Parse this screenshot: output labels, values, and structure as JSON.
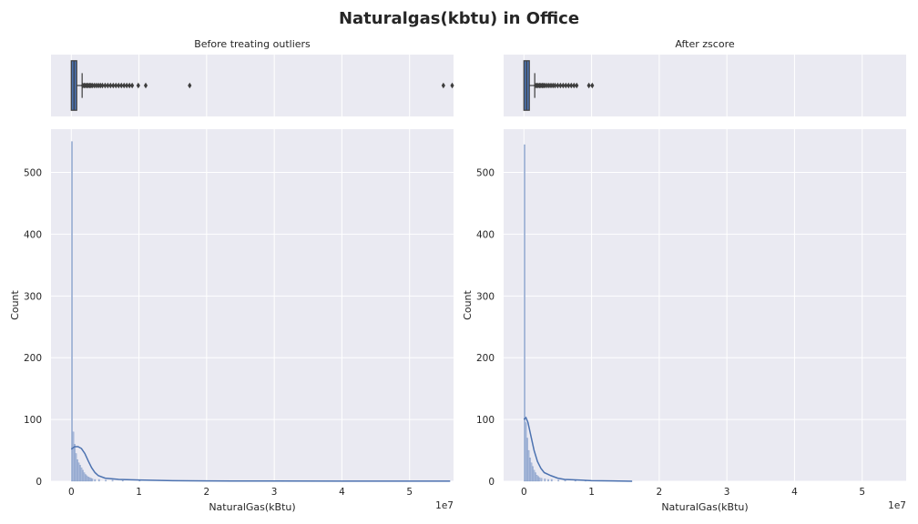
{
  "figure": {
    "title": "Naturalgas(kbtu) in Office"
  },
  "colors": {
    "axes_bg": "#EAEAF2",
    "grid": "#FFFFFF",
    "box_face": "#4C72B0",
    "box_edge": "#3D3D3D",
    "hist_bar": "#A7B8D9",
    "kde_line": "#4C72B0",
    "flier": "#3D3D3D"
  },
  "chart_data": [
    {
      "type": "histogram",
      "panel": "left",
      "title": "Before treating outliers",
      "xlabel": "NaturalGas(kBtu)",
      "ylabel": "Count",
      "x_offset_label": "1e7",
      "xlim": [
        -0.3,
        5.65
      ],
      "ylim": [
        0,
        570
      ],
      "xticks": [
        0,
        1,
        2,
        3,
        4,
        5
      ],
      "yticks": [
        0,
        100,
        200,
        300,
        400,
        500
      ],
      "x_scale": "1e7",
      "grid": true,
      "bins": [
        {
          "x": 0.0,
          "count": 550
        },
        {
          "x": 0.02,
          "count": 80
        },
        {
          "x": 0.04,
          "count": 60
        },
        {
          "x": 0.06,
          "count": 45
        },
        {
          "x": 0.08,
          "count": 35
        },
        {
          "x": 0.1,
          "count": 30
        },
        {
          "x": 0.12,
          "count": 26
        },
        {
          "x": 0.14,
          "count": 22
        },
        {
          "x": 0.16,
          "count": 18
        },
        {
          "x": 0.18,
          "count": 14
        },
        {
          "x": 0.2,
          "count": 11
        },
        {
          "x": 0.22,
          "count": 9
        },
        {
          "x": 0.24,
          "count": 7
        },
        {
          "x": 0.26,
          "count": 6
        },
        {
          "x": 0.28,
          "count": 5
        },
        {
          "x": 0.3,
          "count": 4
        },
        {
          "x": 0.34,
          "count": 3
        },
        {
          "x": 0.4,
          "count": 3
        },
        {
          "x": 0.5,
          "count": 2
        },
        {
          "x": 0.6,
          "count": 2
        },
        {
          "x": 0.75,
          "count": 1
        },
        {
          "x": 1.0,
          "count": 1
        }
      ],
      "kde": [
        [
          0.0,
          52
        ],
        [
          0.05,
          56
        ],
        [
          0.1,
          56
        ],
        [
          0.15,
          53
        ],
        [
          0.2,
          45
        ],
        [
          0.25,
          33
        ],
        [
          0.3,
          22
        ],
        [
          0.35,
          14
        ],
        [
          0.4,
          9
        ],
        [
          0.5,
          5
        ],
        [
          0.7,
          3
        ],
        [
          1.0,
          2
        ],
        [
          1.5,
          1
        ],
        [
          2.0,
          0.5
        ],
        [
          3.0,
          0.3
        ],
        [
          4.0,
          0.2
        ],
        [
          5.0,
          0.2
        ],
        [
          5.6,
          0.2
        ]
      ],
      "boxplot": {
        "q1": 0.0,
        "median": 0.04,
        "q3": 0.08,
        "whisker_low": 0.0,
        "whisker_high": 0.16,
        "fliers": [
          0.17,
          0.19,
          0.21,
          0.23,
          0.25,
          0.27,
          0.29,
          0.31,
          0.34,
          0.37,
          0.4,
          0.43,
          0.46,
          0.5,
          0.54,
          0.58,
          0.62,
          0.66,
          0.7,
          0.74,
          0.78,
          0.82,
          0.86,
          0.9,
          0.99,
          1.1,
          1.75,
          5.5,
          5.63
        ]
      }
    },
    {
      "type": "histogram",
      "panel": "right",
      "title": "After zscore",
      "xlabel": "NaturalGas(kBtu)",
      "ylabel": "Count",
      "x_offset_label": "1e7",
      "xlim": [
        -0.3,
        5.65
      ],
      "ylim": [
        0,
        570
      ],
      "xticks": [
        0,
        1,
        2,
        3,
        4,
        5
      ],
      "yticks": [
        0,
        100,
        200,
        300,
        400,
        500
      ],
      "x_scale": "1e7",
      "grid": true,
      "bins": [
        {
          "x": 0.0,
          "count": 545
        },
        {
          "x": 0.02,
          "count": 95
        },
        {
          "x": 0.04,
          "count": 70
        },
        {
          "x": 0.06,
          "count": 50
        },
        {
          "x": 0.08,
          "count": 38
        },
        {
          "x": 0.1,
          "count": 30
        },
        {
          "x": 0.12,
          "count": 24
        },
        {
          "x": 0.14,
          "count": 18
        },
        {
          "x": 0.16,
          "count": 14
        },
        {
          "x": 0.18,
          "count": 10
        },
        {
          "x": 0.2,
          "count": 8
        },
        {
          "x": 0.22,
          "count": 6
        },
        {
          "x": 0.25,
          "count": 5
        },
        {
          "x": 0.3,
          "count": 4
        },
        {
          "x": 0.35,
          "count": 3
        },
        {
          "x": 0.4,
          "count": 3
        },
        {
          "x": 0.5,
          "count": 2
        },
        {
          "x": 0.6,
          "count": 2
        },
        {
          "x": 0.75,
          "count": 1
        },
        {
          "x": 0.9,
          "count": 1
        }
      ],
      "kde": [
        [
          0.0,
          100
        ],
        [
          0.03,
          103
        ],
        [
          0.06,
          95
        ],
        [
          0.1,
          75
        ],
        [
          0.15,
          50
        ],
        [
          0.2,
          32
        ],
        [
          0.25,
          21
        ],
        [
          0.3,
          14
        ],
        [
          0.4,
          9
        ],
        [
          0.5,
          5
        ],
        [
          0.6,
          3
        ],
        [
          0.8,
          2
        ],
        [
          1.0,
          1
        ],
        [
          1.3,
          0.5
        ],
        [
          1.6,
          0
        ]
      ],
      "boxplot": {
        "q1": 0.0,
        "median": 0.04,
        "q3": 0.08,
        "whisker_low": 0.0,
        "whisker_high": 0.16,
        "fliers": [
          0.17,
          0.19,
          0.21,
          0.23,
          0.25,
          0.27,
          0.29,
          0.31,
          0.34,
          0.37,
          0.4,
          0.43,
          0.46,
          0.5,
          0.54,
          0.58,
          0.62,
          0.66,
          0.7,
          0.74,
          0.78,
          0.96,
          1.01
        ]
      }
    }
  ]
}
